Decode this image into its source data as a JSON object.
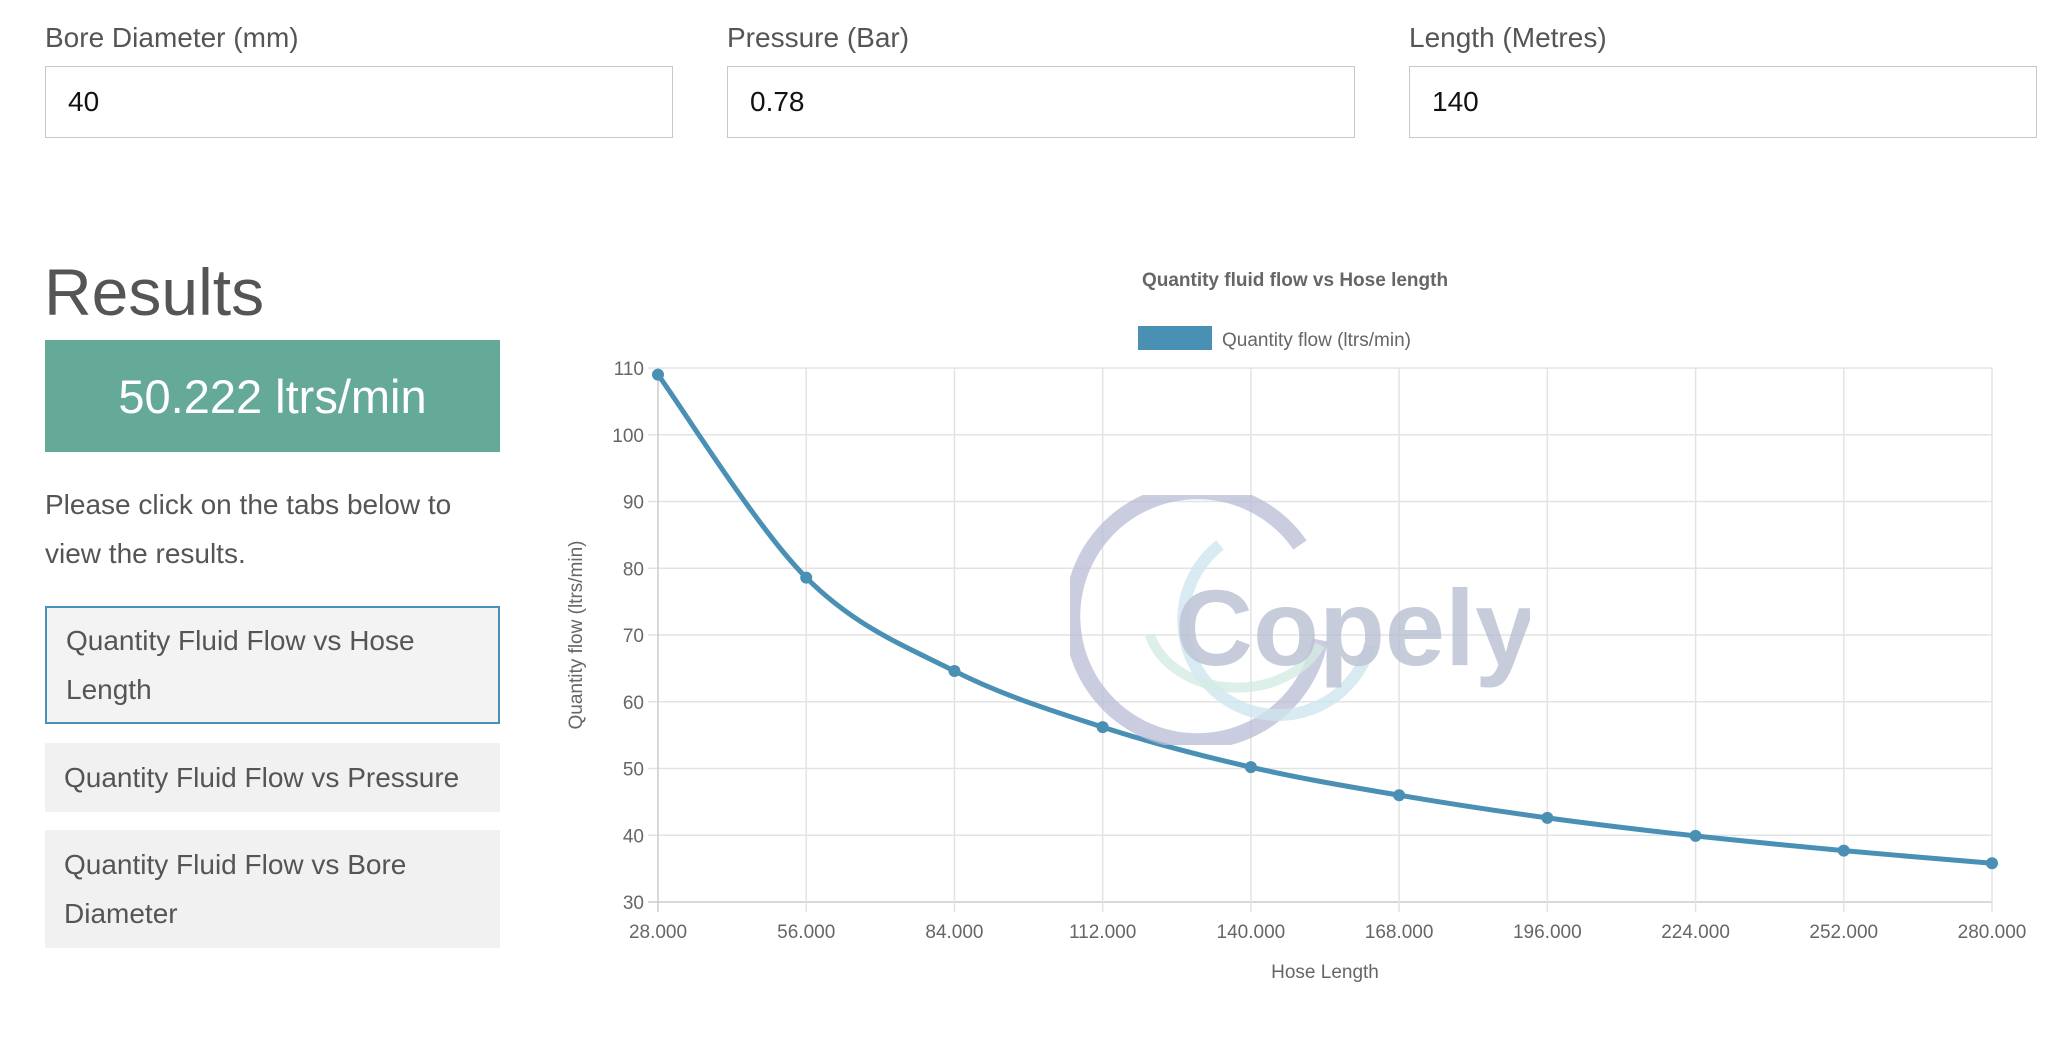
{
  "inputs": {
    "bore": {
      "label": "Bore Diameter (mm)",
      "value": "40"
    },
    "pressure": {
      "label": "Pressure (Bar)",
      "value": "0.78"
    },
    "length": {
      "label": "Length (Metres)",
      "value": "140"
    }
  },
  "results": {
    "title": "Results",
    "value": "50.222 ltrs/min",
    "instructions": "Please click on the tabs below to view the results."
  },
  "tabs": [
    {
      "label": "Quantity Fluid Flow vs Hose Length",
      "active": true
    },
    {
      "label": "Quantity Fluid Flow vs Pressure",
      "active": false
    },
    {
      "label": "Quantity Fluid Flow vs Bore Diameter",
      "active": false
    }
  ],
  "watermark": {
    "text": "Copely"
  },
  "colors": {
    "accent": "#65a999",
    "series": "#4a90b4",
    "grid": "#e3e3e3"
  },
  "chart_data": {
    "type": "line",
    "title": "Quantity fluid flow vs Hose length",
    "legend": "Quantity flow (ltrs/min)",
    "xlabel": "Hose Length",
    "ylabel": "Quantity flow (ltrs/min)",
    "x": [
      "28.000",
      "56.000",
      "84.000",
      "112.000",
      "140.000",
      "168.000",
      "196.000",
      "224.000",
      "252.000",
      "280.000"
    ],
    "values": [
      109,
      78.6,
      64.6,
      56.2,
      50.2,
      46.0,
      42.6,
      39.9,
      37.7,
      35.8
    ],
    "ylim": [
      30,
      110
    ],
    "yticks": [
      110,
      100,
      90,
      80,
      70,
      60,
      50,
      40,
      30
    ]
  }
}
